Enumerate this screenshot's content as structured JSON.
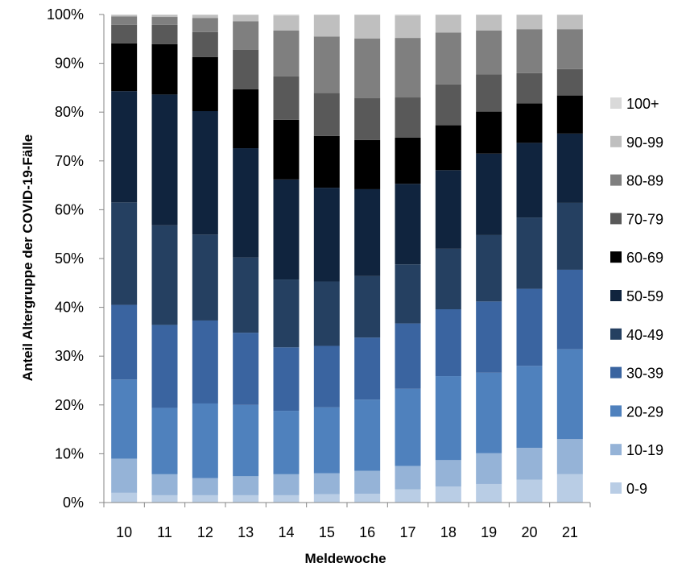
{
  "chart_data": {
    "type": "bar",
    "stacked": true,
    "percent": true,
    "title": "",
    "xlabel": "Meldewoche",
    "ylabel": "Anteil Altergruppe der COVID-19-Fälle",
    "ylim": [
      0,
      100
    ],
    "y_ticks": [
      "0%",
      "10%",
      "20%",
      "30%",
      "40%",
      "50%",
      "60%",
      "70%",
      "80%",
      "90%",
      "100%"
    ],
    "categories": [
      "10",
      "11",
      "12",
      "13",
      "14",
      "15",
      "16",
      "17",
      "18",
      "19",
      "20",
      "21"
    ],
    "legend_position": "right",
    "series": [
      {
        "name": "0-9",
        "color": "#b9cde5",
        "values": [
          2.0,
          1.5,
          1.5,
          1.5,
          1.5,
          1.7,
          1.8,
          2.7,
          3.3,
          3.8,
          4.7,
          5.8
        ]
      },
      {
        "name": "10-19",
        "color": "#95b3d7",
        "values": [
          7.0,
          4.3,
          3.5,
          3.9,
          4.3,
          4.3,
          4.7,
          4.8,
          5.4,
          6.3,
          6.5,
          7.2
        ]
      },
      {
        "name": "20-29",
        "color": "#4f81bd",
        "values": [
          16.2,
          13.6,
          15.3,
          14.6,
          13.0,
          13.5,
          14.6,
          15.8,
          17.2,
          16.5,
          16.8,
          18.4
        ]
      },
      {
        "name": "30-39",
        "color": "#3a64a0",
        "values": [
          15.3,
          17.0,
          17.0,
          14.8,
          13.0,
          12.6,
          12.7,
          13.4,
          13.7,
          14.6,
          15.8,
          16.3
        ]
      },
      {
        "name": "40-49",
        "color": "#254061",
        "values": [
          21.0,
          20.4,
          17.6,
          15.4,
          13.9,
          13.2,
          12.6,
          12.1,
          12.4,
          13.6,
          14.6,
          13.7
        ]
      },
      {
        "name": "50-59",
        "color": "#10243e",
        "values": [
          22.8,
          26.8,
          25.3,
          22.4,
          20.5,
          19.2,
          17.8,
          16.5,
          16.1,
          16.7,
          15.3,
          14.2
        ]
      },
      {
        "name": "60-69",
        "color": "#000000",
        "values": [
          9.8,
          10.3,
          11.1,
          12.1,
          12.2,
          10.6,
          10.1,
          9.5,
          9.2,
          8.6,
          8.1,
          7.8
        ]
      },
      {
        "name": "70-79",
        "color": "#595959",
        "values": [
          3.8,
          4.0,
          5.1,
          8.1,
          8.9,
          8.8,
          8.6,
          8.2,
          8.4,
          7.6,
          6.2,
          5.4
        ]
      },
      {
        "name": "80-89",
        "color": "#7f7f7f",
        "values": [
          1.7,
          1.6,
          2.9,
          5.8,
          9.4,
          11.6,
          12.2,
          12.2,
          10.6,
          9.0,
          9.0,
          8.2
        ]
      },
      {
        "name": "90-99",
        "color": "#bfbfbf",
        "values": [
          0.3,
          0.4,
          0.6,
          1.3,
          3.1,
          4.4,
          4.8,
          4.6,
          3.6,
          3.2,
          2.9,
          2.9
        ]
      },
      {
        "name": "100+",
        "color": "#d9d9d9",
        "values": [
          0.1,
          0.1,
          0.1,
          0.1,
          0.2,
          0.1,
          0.1,
          0.2,
          0.1,
          0.1,
          0.1,
          0.1
        ]
      }
    ]
  }
}
